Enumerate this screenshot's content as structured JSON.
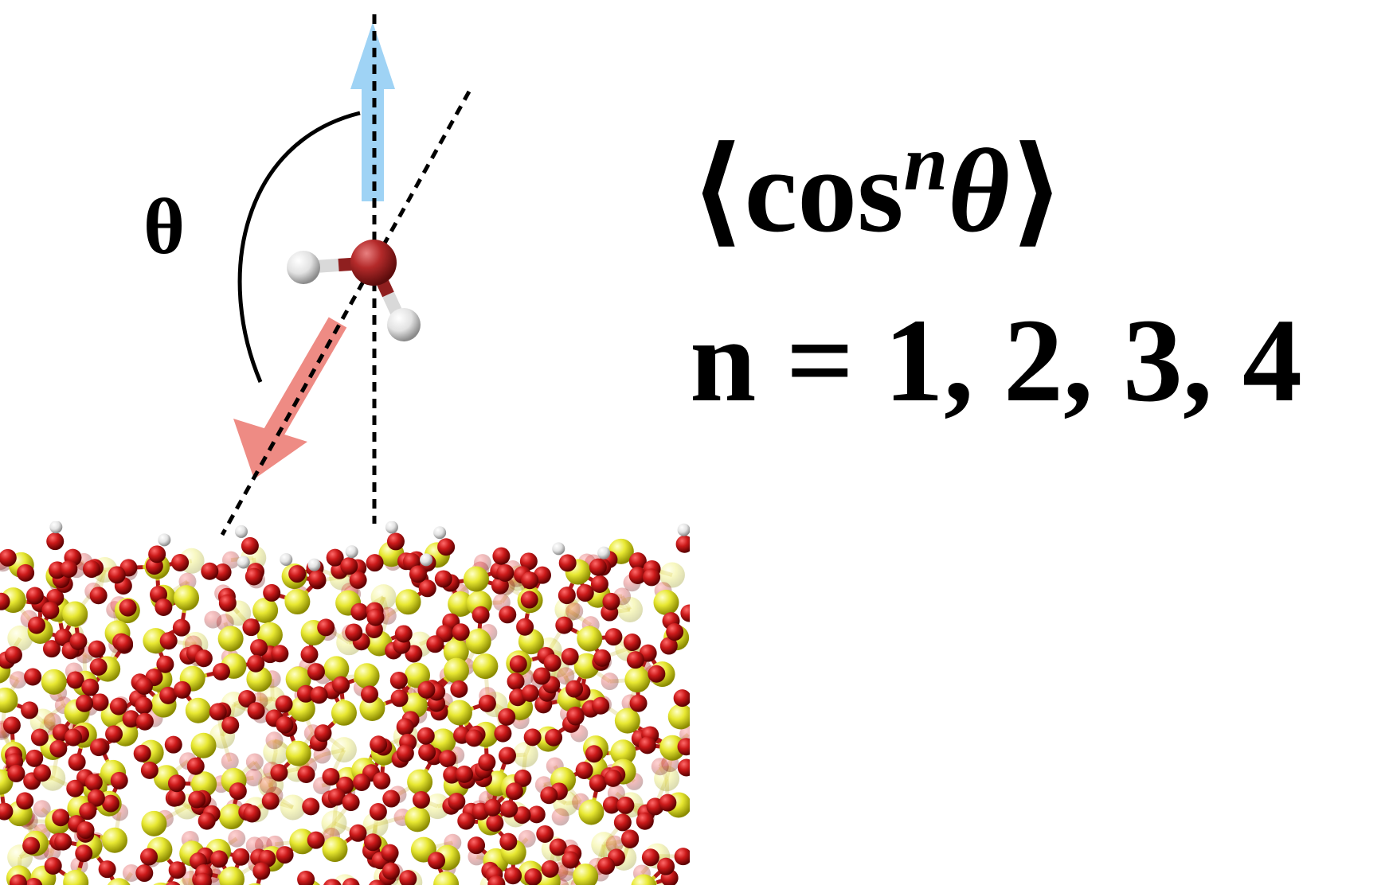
{
  "diagram": {
    "angle_label": "θ",
    "formula": {
      "open": "⟨",
      "cos": "cos",
      "power": "n",
      "theta": "θ",
      "close": "⟩",
      "condition": "n = 1, 2, 3, 4"
    },
    "colors": {
      "dipole_arrow": "#f08c84",
      "normal_arrow": "#9fd3f5",
      "oxygen": "#c8102e",
      "hydrogen": "#e6e6e6",
      "silicon": "#e3e32f",
      "bond": "#d4c71d"
    },
    "icons": {
      "water_molecule": "water-molecule-icon",
      "surface_slab": "silica-surface-icon"
    }
  }
}
